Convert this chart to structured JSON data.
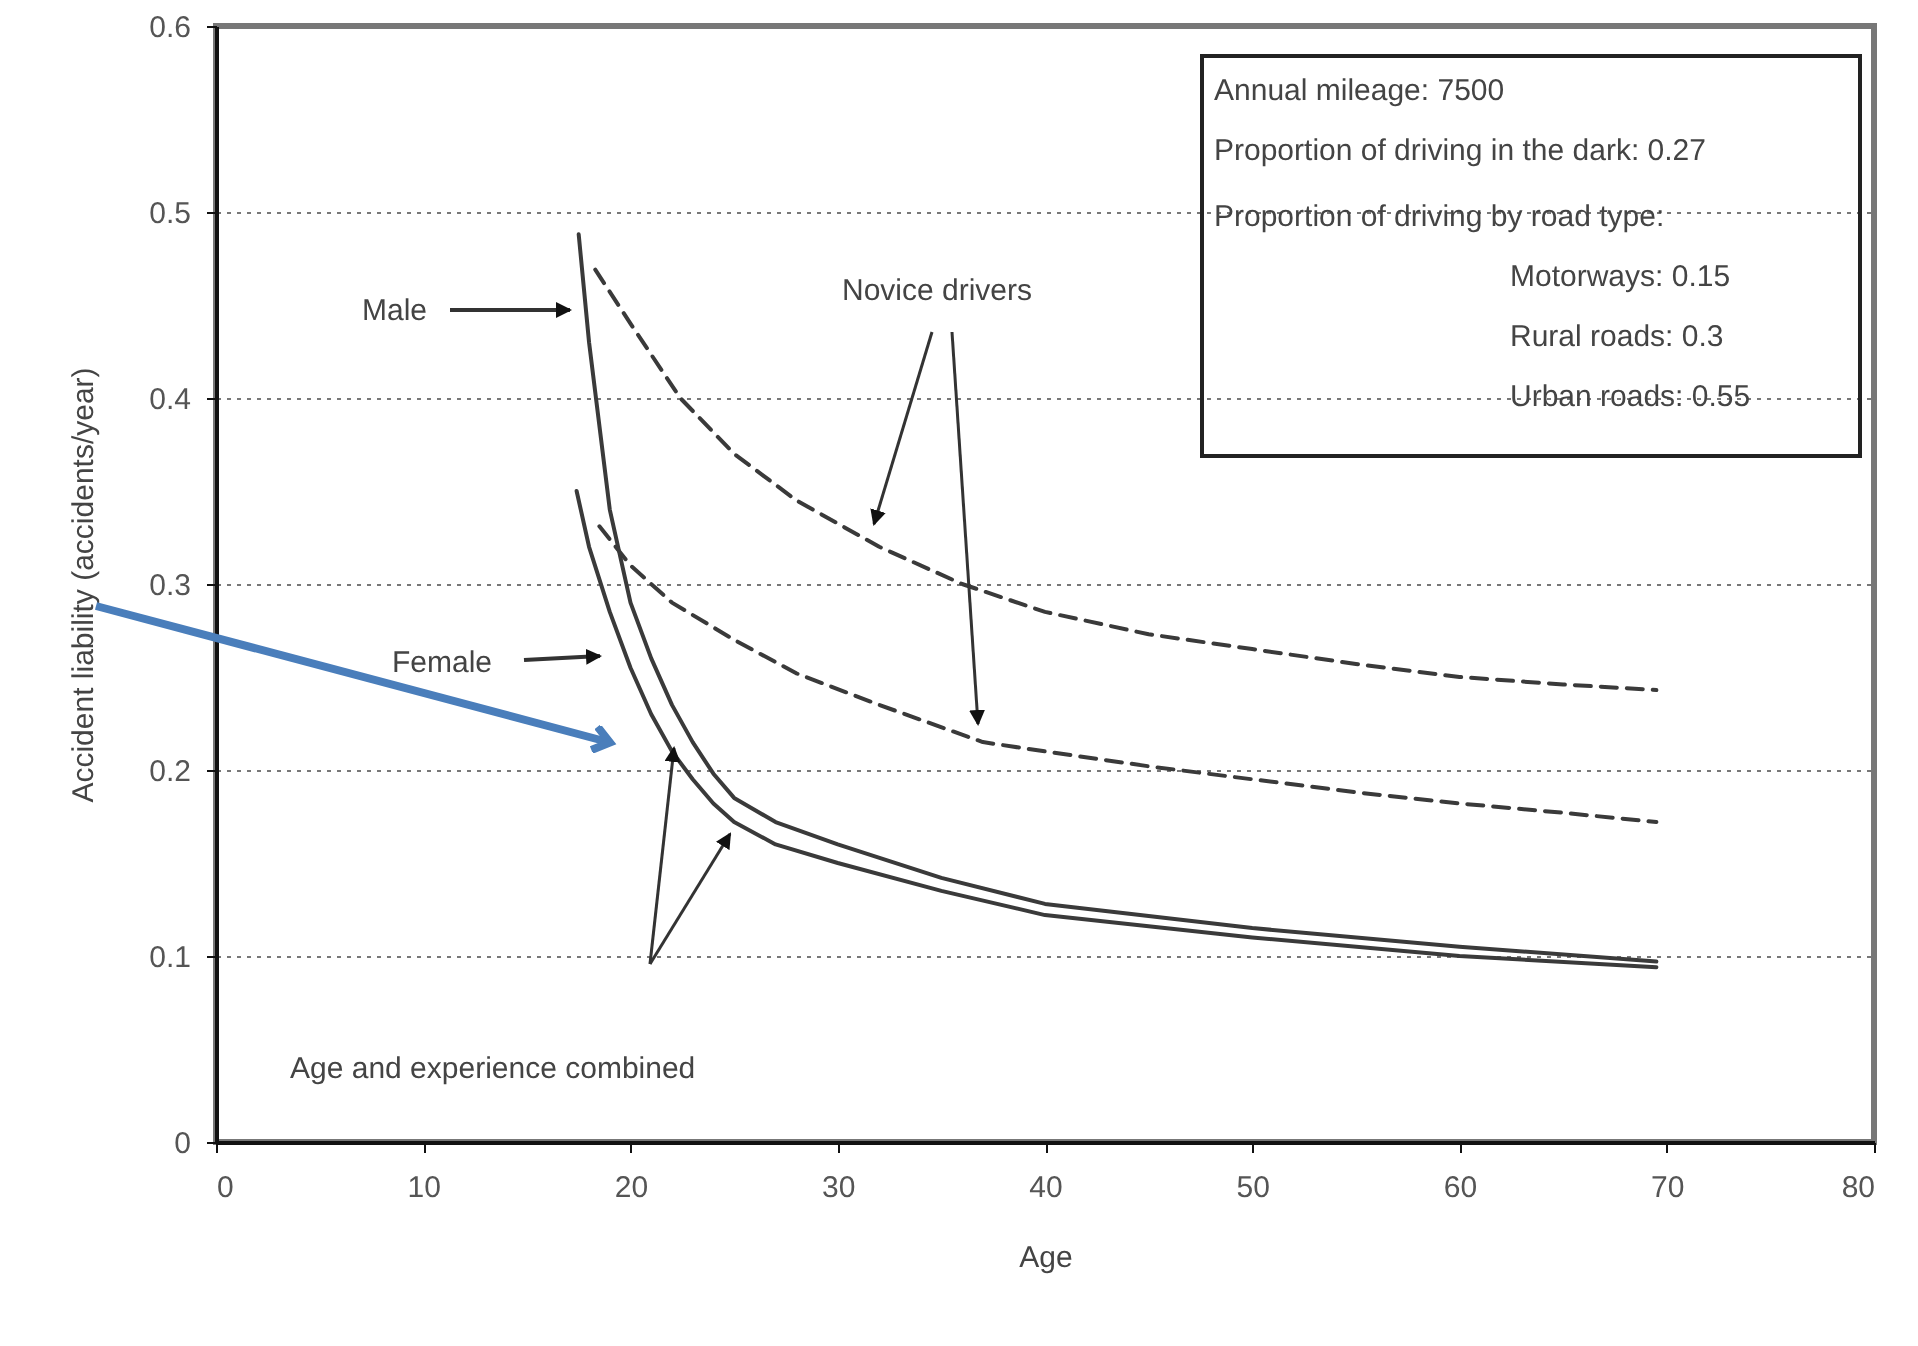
{
  "chart_data": {
    "type": "line",
    "xlabel": "Age",
    "ylabel": "Accident liability (accidents/year)",
    "xlim": [
      0,
      80
    ],
    "xticks": [
      0,
      10,
      20,
      30,
      40,
      50,
      60,
      70,
      80
    ],
    "ylim": [
      0,
      0.6
    ],
    "yticks": [
      0,
      0.1,
      0.2,
      0.3,
      0.4,
      0.5,
      0.6
    ],
    "grid": "y",
    "marker": "none",
    "series": [
      {
        "color": "#3a3a3a",
        "line_style": "dashed",
        "x": [
          18.3,
          20,
          22.4,
          25,
          28,
          32,
          36,
          40,
          45,
          50,
          55,
          60,
          65,
          69.5
        ],
        "values": [
          0.469,
          0.44,
          0.4,
          0.37,
          0.345,
          0.32,
          0.3,
          0.285,
          0.273,
          0.265,
          0.257,
          0.25,
          0.246,
          0.243
        ]
      },
      {
        "color": "#3a3a3a",
        "line_style": "dashed",
        "x": [
          18.5,
          20,
          22,
          25,
          28,
          32,
          37,
          40,
          45,
          50,
          55,
          60,
          65,
          69.5
        ],
        "values": [
          0.331,
          0.31,
          0.29,
          0.27,
          0.252,
          0.235,
          0.215,
          0.21,
          0.202,
          0.195,
          0.188,
          0.182,
          0.177,
          0.172
        ]
      },
      {
        "color": "#3a3a3a",
        "line_style": "solid",
        "x": [
          17.5,
          18,
          19,
          20,
          21,
          22,
          23,
          24,
          25,
          27,
          30,
          35,
          40,
          50,
          60,
          69.5
        ],
        "values": [
          0.488,
          0.43,
          0.34,
          0.29,
          0.26,
          0.235,
          0.215,
          0.198,
          0.185,
          0.172,
          0.16,
          0.142,
          0.128,
          0.115,
          0.105,
          0.097
        ]
      },
      {
        "color": "#3a3a3a",
        "line_style": "solid",
        "x": [
          17.4,
          18,
          19,
          20,
          21,
          22,
          23,
          24,
          25,
          27,
          30,
          35,
          40,
          50,
          60,
          69.5
        ],
        "values": [
          0.35,
          0.32,
          0.285,
          0.255,
          0.23,
          0.21,
          0.195,
          0.182,
          0.172,
          0.16,
          0.15,
          0.135,
          0.122,
          0.11,
          0.1,
          0.094
        ]
      }
    ],
    "annotations": [
      "Male",
      "Female",
      "Novice drivers",
      "Age and experience combined",
      "Annual mileage: 7500",
      "Proportion of driving in the dark: 0.27",
      "Proportion of driving by road type:",
      "Motorways: 0.15",
      "Rural roads: 0.3",
      "Urban roads: 0.55"
    ]
  }
}
